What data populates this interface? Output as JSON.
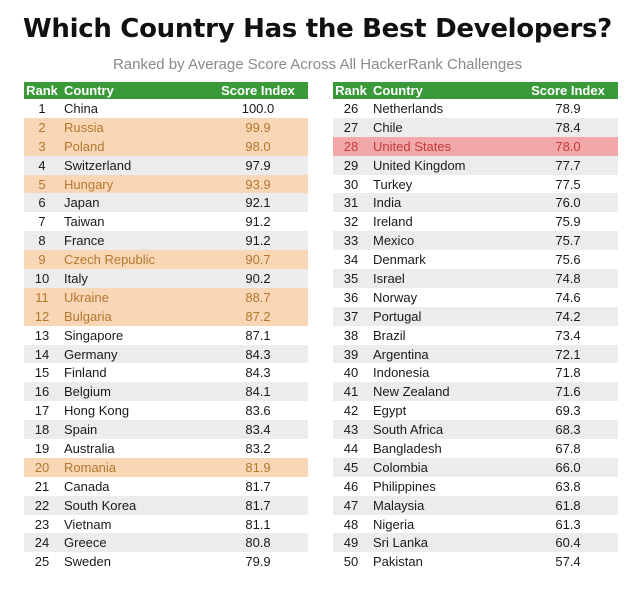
{
  "chart_data": {
    "type": "table",
    "title": "Which Country Has the Best Developers?",
    "subtitle": "Ranked by Average Score Across All HackerRank Challenges",
    "columns": [
      "Rank",
      "Country",
      "Score Index"
    ],
    "colors": {
      "header": "#3a9a3a",
      "highlight": "#f8d6b6",
      "highlight_red": "#f2a8a8"
    },
    "left_rows": [
      {
        "rank": "1",
        "country": "China",
        "score": "100.0",
        "hl": ""
      },
      {
        "rank": "2",
        "country": "Russia",
        "score": "99.9",
        "hl": "hl"
      },
      {
        "rank": "3",
        "country": "Poland",
        "score": "98.0",
        "hl": "hl"
      },
      {
        "rank": "4",
        "country": "Switzerland",
        "score": "97.9",
        "hl": ""
      },
      {
        "rank": "5",
        "country": "Hungary",
        "score": "93.9",
        "hl": "hl"
      },
      {
        "rank": "6",
        "country": "Japan",
        "score": "92.1",
        "hl": ""
      },
      {
        "rank": "7",
        "country": "Taiwan",
        "score": "91.2",
        "hl": ""
      },
      {
        "rank": "8",
        "country": "France",
        "score": "91.2",
        "hl": ""
      },
      {
        "rank": "9",
        "country": "Czech Republic",
        "score": "90.7",
        "hl": "hl"
      },
      {
        "rank": "10",
        "country": "Italy",
        "score": "90.2",
        "hl": ""
      },
      {
        "rank": "11",
        "country": "Ukraine",
        "score": "88.7",
        "hl": "hl"
      },
      {
        "rank": "12",
        "country": "Bulgaria",
        "score": "87.2",
        "hl": "hl"
      },
      {
        "rank": "13",
        "country": "Singapore",
        "score": "87.1",
        "hl": ""
      },
      {
        "rank": "14",
        "country": "Germany",
        "score": "84.3",
        "hl": ""
      },
      {
        "rank": "15",
        "country": "Finland",
        "score": "84.3",
        "hl": ""
      },
      {
        "rank": "16",
        "country": "Belgium",
        "score": "84.1",
        "hl": ""
      },
      {
        "rank": "17",
        "country": "Hong Kong",
        "score": "83.6",
        "hl": ""
      },
      {
        "rank": "18",
        "country": "Spain",
        "score": "83.4",
        "hl": ""
      },
      {
        "rank": "19",
        "country": "Australia",
        "score": "83.2",
        "hl": ""
      },
      {
        "rank": "20",
        "country": "Romania",
        "score": "81.9",
        "hl": "hl"
      },
      {
        "rank": "21",
        "country": "Canada",
        "score": "81.7",
        "hl": ""
      },
      {
        "rank": "22",
        "country": "South Korea",
        "score": "81.7",
        "hl": ""
      },
      {
        "rank": "23",
        "country": "Vietnam",
        "score": "81.1",
        "hl": ""
      },
      {
        "rank": "24",
        "country": "Greece",
        "score": "80.8",
        "hl": ""
      },
      {
        "rank": "25",
        "country": "Sweden",
        "score": "79.9",
        "hl": ""
      }
    ],
    "right_rows": [
      {
        "rank": "26",
        "country": "Netherlands",
        "score": "78.9",
        "hl": ""
      },
      {
        "rank": "27",
        "country": "Chile",
        "score": "78.4",
        "hl": ""
      },
      {
        "rank": "28",
        "country": "United States",
        "score": "78.0",
        "hl": "hl-red"
      },
      {
        "rank": "29",
        "country": "United Kingdom",
        "score": "77.7",
        "hl": ""
      },
      {
        "rank": "30",
        "country": "Turkey",
        "score": "77.5",
        "hl": ""
      },
      {
        "rank": "31",
        "country": "India",
        "score": "76.0",
        "hl": ""
      },
      {
        "rank": "32",
        "country": "Ireland",
        "score": "75.9",
        "hl": ""
      },
      {
        "rank": "33",
        "country": "Mexico",
        "score": "75.7",
        "hl": ""
      },
      {
        "rank": "34",
        "country": "Denmark",
        "score": "75.6",
        "hl": ""
      },
      {
        "rank": "35",
        "country": "Israel",
        "score": "74.8",
        "hl": ""
      },
      {
        "rank": "36",
        "country": "Norway",
        "score": "74.6",
        "hl": ""
      },
      {
        "rank": "37",
        "country": "Portugal",
        "score": "74.2",
        "hl": ""
      },
      {
        "rank": "38",
        "country": "Brazil",
        "score": "73.4",
        "hl": ""
      },
      {
        "rank": "39",
        "country": "Argentina",
        "score": "72.1",
        "hl": ""
      },
      {
        "rank": "40",
        "country": "Indonesia",
        "score": "71.8",
        "hl": ""
      },
      {
        "rank": "41",
        "country": "New Zealand",
        "score": "71.6",
        "hl": ""
      },
      {
        "rank": "42",
        "country": "Egypt",
        "score": "69.3",
        "hl": ""
      },
      {
        "rank": "43",
        "country": "South Africa",
        "score": "68.3",
        "hl": ""
      },
      {
        "rank": "44",
        "country": "Bangladesh",
        "score": "67.8",
        "hl": ""
      },
      {
        "rank": "45",
        "country": "Colombia",
        "score": "66.0",
        "hl": ""
      },
      {
        "rank": "46",
        "country": "Philippines",
        "score": "63.8",
        "hl": ""
      },
      {
        "rank": "47",
        "country": "Malaysia",
        "score": "61.8",
        "hl": ""
      },
      {
        "rank": "48",
        "country": "Nigeria",
        "score": "61.3",
        "hl": ""
      },
      {
        "rank": "49",
        "country": "Sri Lanka",
        "score": "60.4",
        "hl": ""
      },
      {
        "rank": "50",
        "country": "Pakistan",
        "score": "57.4",
        "hl": ""
      }
    ]
  }
}
